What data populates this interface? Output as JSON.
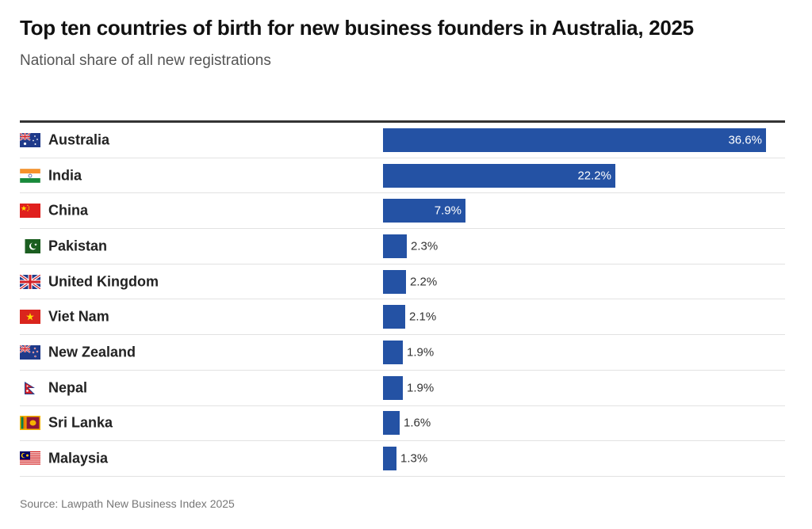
{
  "title": "Top ten countries of birth for new business founders in Australia, 2025",
  "subtitle": "National share of all new registrations",
  "source": "Source: Lawpath New Business Index 2025",
  "colors": {
    "bar": "#2452a4",
    "rule": "#333333"
  },
  "chart_data": {
    "type": "bar",
    "orientation": "horizontal",
    "categories": [
      "Australia",
      "India",
      "China",
      "Pakistan",
      "United Kingdom",
      "Viet Nam",
      "New Zealand",
      "Nepal",
      "Sri Lanka",
      "Malaysia"
    ],
    "values": [
      36.6,
      22.2,
      7.9,
      2.3,
      2.2,
      2.1,
      1.9,
      1.9,
      1.6,
      1.3
    ],
    "value_labels": [
      "36.6%",
      "22.2%",
      "7.9%",
      "2.3%",
      "2.2%",
      "2.1%",
      "1.9%",
      "1.9%",
      "1.6%",
      "1.3%"
    ],
    "flag_icons": [
      "australia-flag-icon",
      "india-flag-icon",
      "china-flag-icon",
      "pakistan-flag-icon",
      "united-kingdom-flag-icon",
      "viet-nam-flag-icon",
      "new-zealand-flag-icon",
      "nepal-flag-icon",
      "sri-lanka-flag-icon",
      "malaysia-flag-icon"
    ],
    "xlim": [
      0,
      36.6
    ],
    "grid": false,
    "legend": "none"
  }
}
